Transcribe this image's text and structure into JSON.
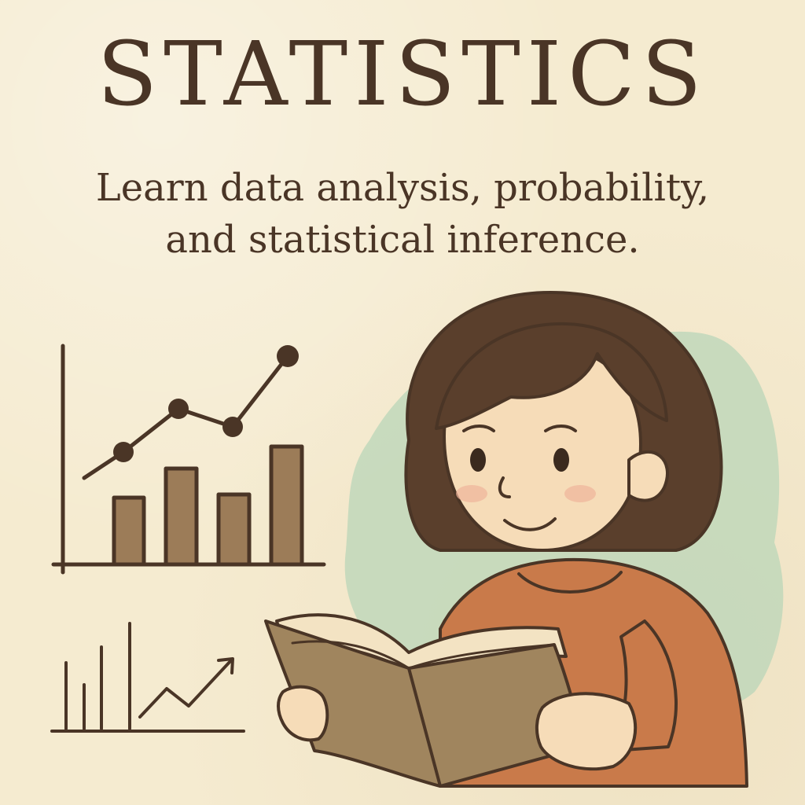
{
  "header": {
    "title": "STATISTICS",
    "subtitle_line1": "Learn data analysis, probability,",
    "subtitle_line2": "and statistical inference."
  },
  "colors": {
    "background": "#f5ebd0",
    "ink": "#4a3526",
    "bar_fill": "#9c7c58",
    "sweater": "#c97a4a",
    "hair": "#5a3f2c",
    "skin": "#f6dcb8",
    "book_cover": "#a0855e",
    "watercolor": "#b9d6b8"
  },
  "icons": {
    "main_chart": "bar-and-line-chart-icon",
    "small_chart": "trend-up-chart-icon",
    "figure": "girl-reading-book-illustration"
  }
}
